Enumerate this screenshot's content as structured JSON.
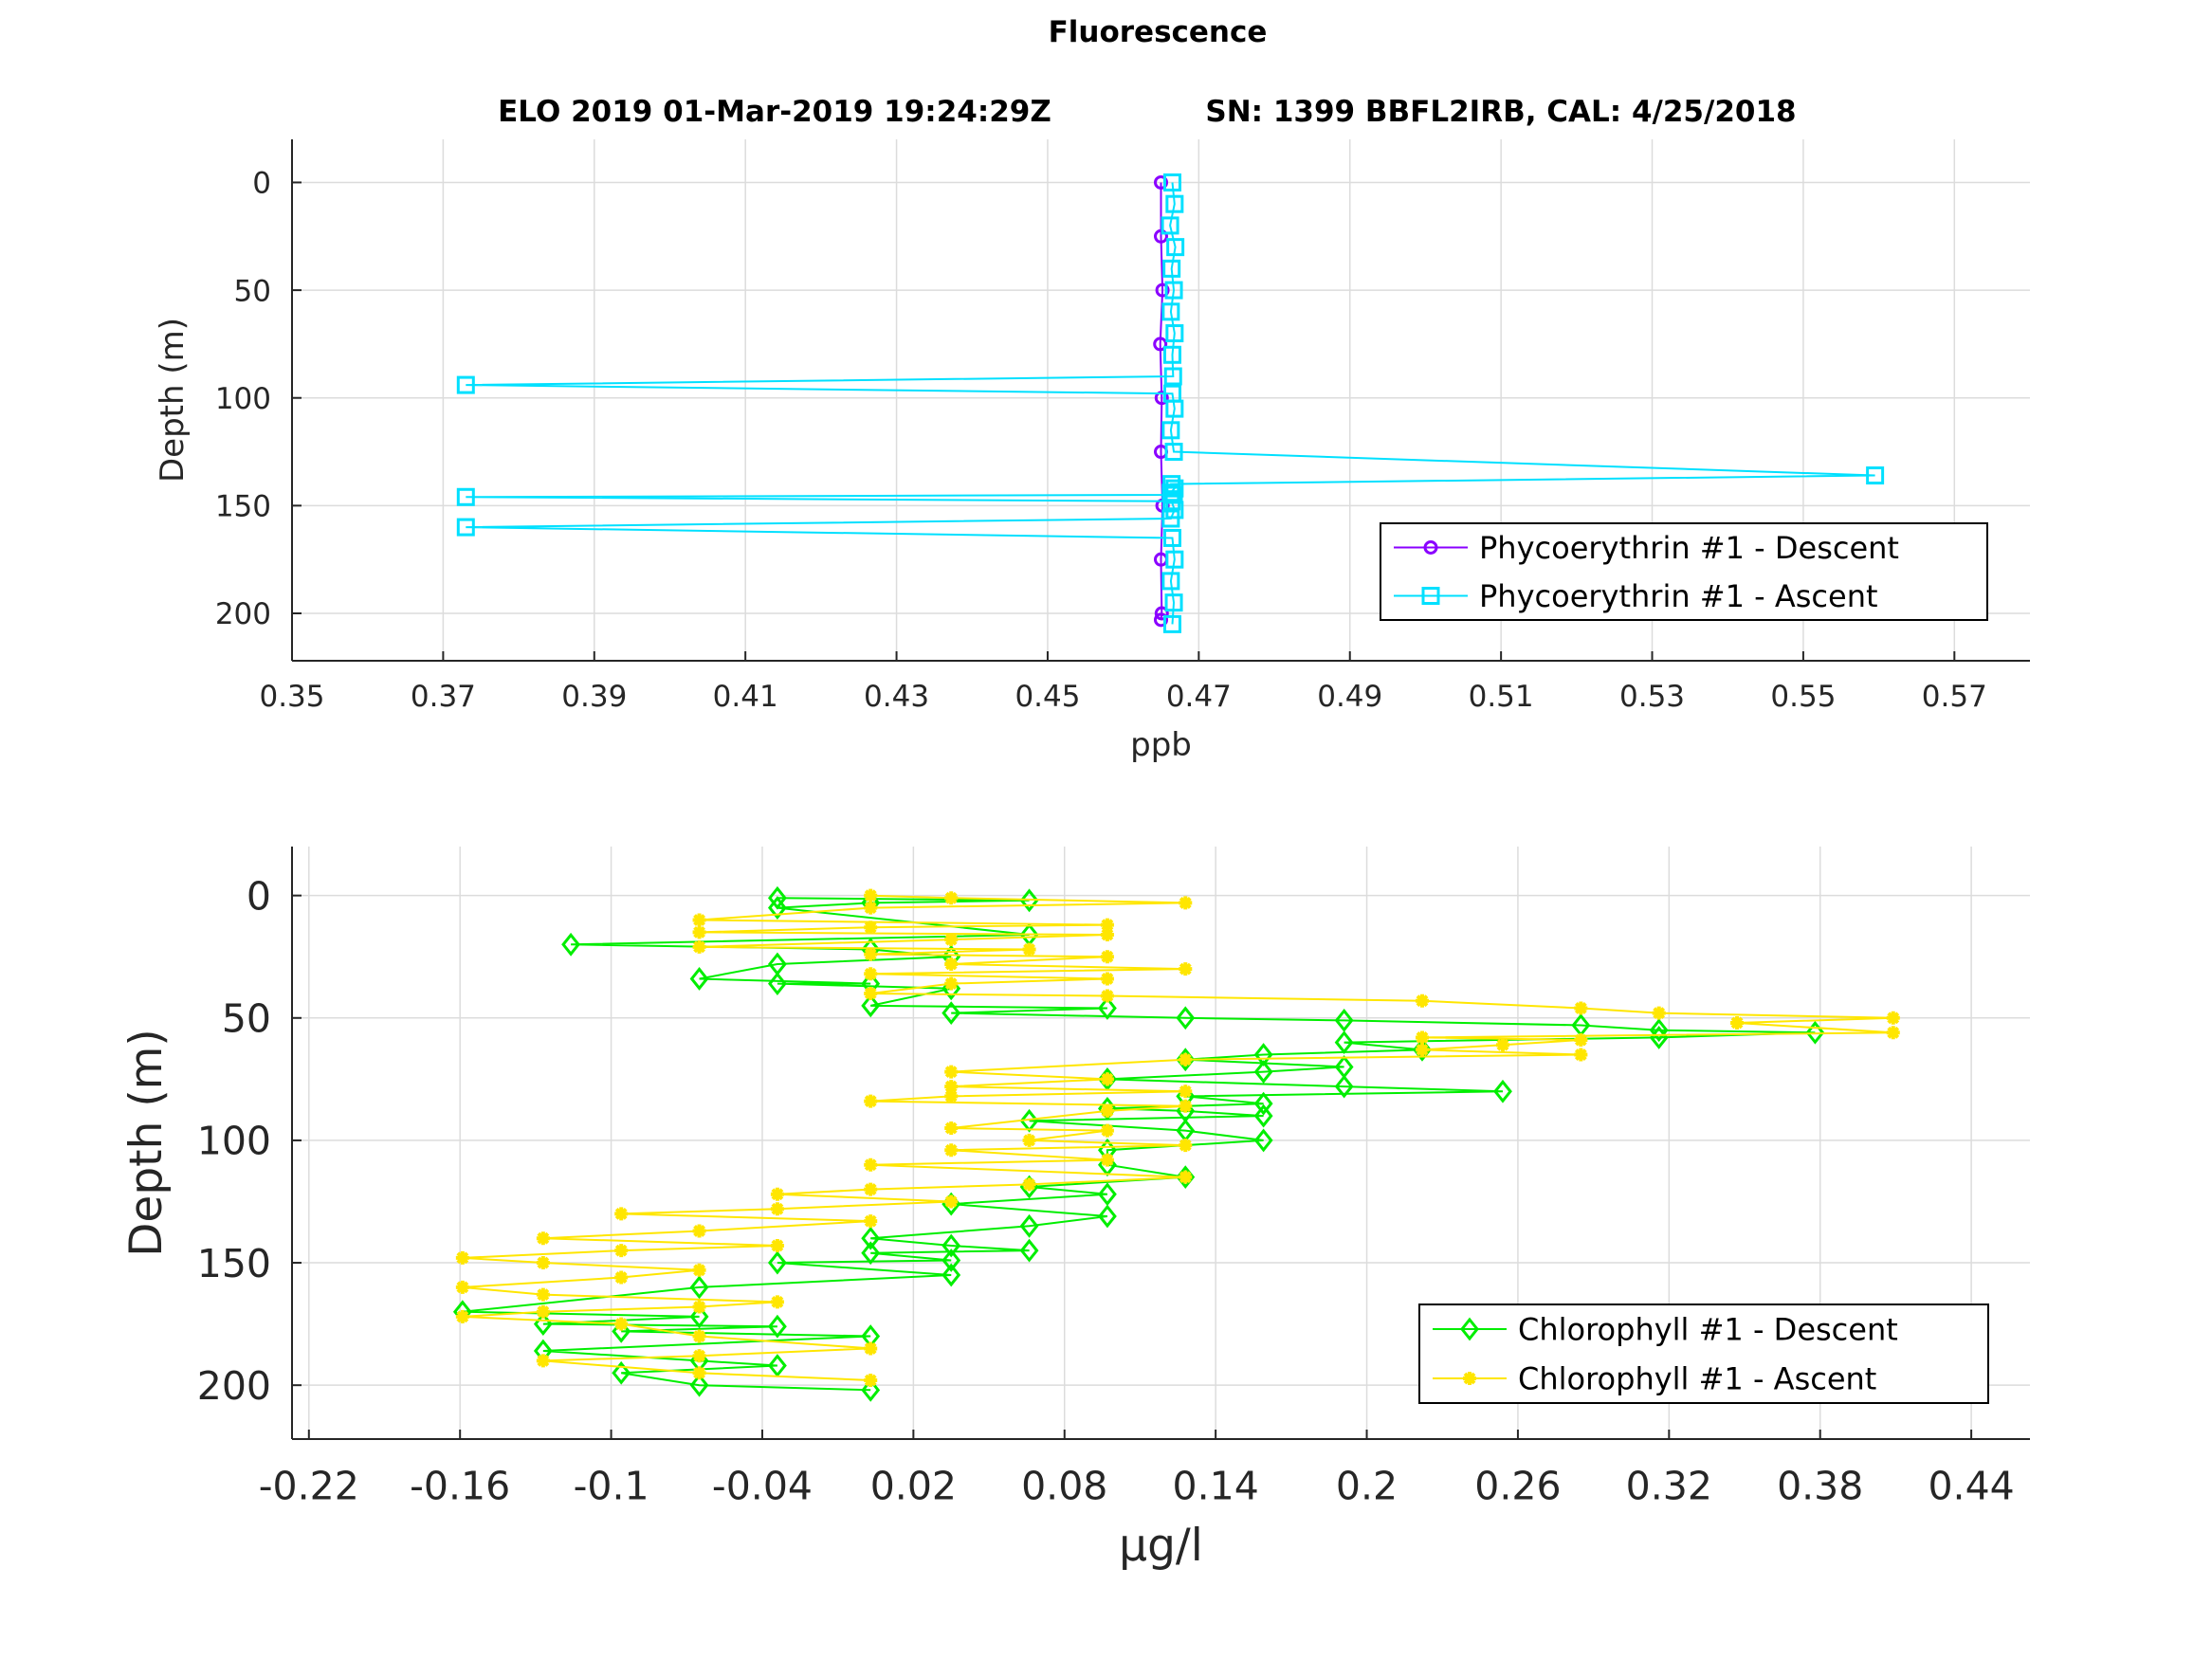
{
  "figure": {
    "title": "Fluorescence",
    "subtitle_left": "ELO 2019 01-Mar-2019 19:24:29Z",
    "subtitle_right": "SN: 1399 BBFL2IRB, CAL: 4/25/2018"
  },
  "colors": {
    "phyco_descent": "#8a00ff",
    "phyco_ascent": "#00e0ff",
    "chl_descent": "#00ee00",
    "chl_ascent": "#ffe600",
    "grid": "#dcdcdc",
    "axis": "#262626"
  },
  "chart_data": [
    {
      "type": "line",
      "xlabel": "ppb",
      "ylabel": "Depth (m)",
      "xlim": [
        0.35,
        0.58
      ],
      "ylim": [
        -20,
        222
      ],
      "y_reversed": true,
      "grid": true,
      "legend_position": "bottom-right",
      "xticks": [
        "0.35",
        "0.37",
        "0.39",
        "0.41",
        "0.43",
        "0.45",
        "0.47",
        "0.49",
        "0.51",
        "0.53",
        "0.55",
        "0.57"
      ],
      "yticks": [
        "0",
        "50",
        "100",
        "150",
        "200"
      ],
      "series": [
        {
          "name": "Phycoerythrin #1 - Descent",
          "marker": "circle",
          "x": [
            0.465,
            0.465,
            0.4652,
            0.4649,
            0.4651,
            0.465,
            0.4652,
            0.465,
            0.4651,
            0.465
          ],
          "y": [
            0,
            25,
            50,
            75,
            100,
            125,
            150,
            175,
            200,
            203
          ]
        },
        {
          "name": "Phycoerythrin #1 - Ascent",
          "marker": "square",
          "x": [
            0.4665,
            0.4668,
            0.4662,
            0.4669,
            0.4664,
            0.4667,
            0.4663,
            0.4668,
            0.4665,
            0.4666,
            0.373,
            0.4665,
            0.4668,
            0.4663,
            0.4667,
            0.5595,
            0.4664,
            0.4668,
            0.4663,
            0.4667,
            0.373,
            0.4664,
            0.4668,
            0.4663,
            0.373,
            0.4665,
            0.4668,
            0.4663,
            0.4667,
            0.4665
          ],
          "y": [
            0,
            10,
            20,
            30,
            40,
            50,
            60,
            70,
            80,
            90,
            94,
            98,
            105,
            115,
            125,
            136,
            140,
            142,
            144,
            145,
            146,
            148,
            152,
            156,
            160,
            165,
            175,
            185,
            195,
            205
          ]
        }
      ]
    },
    {
      "type": "line",
      "xlabel": "µg/l",
      "ylabel": "Depth (m)",
      "xlim": [
        -0.2267,
        0.4633
      ],
      "ylim": [
        -20,
        222
      ],
      "y_reversed": true,
      "grid": true,
      "legend_position": "bottom-right",
      "xticks": [
        "-0.22",
        "-0.16",
        "-0.1",
        "-0.04",
        "0.02",
        "0.08",
        "0.14",
        "0.2",
        "0.26",
        "0.32",
        "0.38",
        "0.44"
      ],
      "yticks": [
        "0",
        "50",
        "100",
        "150",
        "200"
      ],
      "series": [
        {
          "name": "Chlorophyll #1 - Descent",
          "marker": "diamond",
          "x": [
            -0.034,
            0.066,
            0.003,
            -0.034,
            0.066,
            -0.116,
            0.003,
            0.035,
            -0.034,
            -0.065,
            0.003,
            -0.034,
            0.035,
            0.003,
            0.097,
            0.035,
            0.128,
            0.191,
            0.285,
            0.316,
            0.378,
            0.316,
            0.191,
            0.222,
            0.159,
            0.128,
            0.191,
            0.159,
            0.097,
            0.191,
            0.254,
            0.128,
            0.159,
            0.097,
            0.128,
            0.159,
            0.066,
            0.128,
            0.159,
            0.097,
            0.097,
            0.128,
            0.066,
            0.097,
            0.035,
            0.097,
            0.066,
            0.003,
            0.035,
            0.066,
            0.003,
            0.035,
            -0.034,
            0.035,
            -0.065,
            -0.159,
            -0.065,
            -0.127,
            -0.034,
            -0.096,
            0.003,
            -0.127,
            -0.065,
            -0.034,
            -0.096,
            -0.065,
            0.003
          ],
          "y": [
            1,
            2,
            3,
            5,
            16,
            20,
            22,
            25,
            28,
            34,
            36,
            36,
            38,
            45,
            46,
            48,
            50,
            51,
            53,
            55,
            56,
            58,
            60,
            63,
            65,
            67,
            70,
            72,
            75,
            78,
            80,
            82,
            85,
            87,
            88,
            90,
            92,
            96,
            100,
            104,
            110,
            115,
            119,
            122,
            126,
            131,
            135,
            140,
            143,
            145,
            146,
            149,
            150,
            155,
            160,
            170,
            172,
            175,
            176,
            178,
            180,
            186,
            190,
            192,
            195,
            200,
            202
          ]
        },
        {
          "name": "Chlorophyll #1 - Ascent",
          "marker": "asterisk",
          "x": [
            0.003,
            0.035,
            0.128,
            0.003,
            -0.065,
            0.097,
            0.003,
            -0.065,
            0.097,
            0.035,
            -0.065,
            0.066,
            0.003,
            0.097,
            0.035,
            0.128,
            0.003,
            0.097,
            0.035,
            0.003,
            0.097,
            0.222,
            0.285,
            0.316,
            0.409,
            0.347,
            0.409,
            0.222,
            0.285,
            0.254,
            0.222,
            0.285,
            0.128,
            0.035,
            0.097,
            0.035,
            0.128,
            0.035,
            0.003,
            0.128,
            0.097,
            0.035,
            0.097,
            0.066,
            0.128,
            0.035,
            0.097,
            0.003,
            0.128,
            0.066,
            0.003,
            -0.034,
            0.035,
            -0.034,
            -0.096,
            0.003,
            -0.065,
            -0.127,
            -0.034,
            -0.096,
            -0.159,
            -0.127,
            -0.065,
            -0.096,
            -0.159,
            -0.127,
            -0.034,
            -0.065,
            -0.127,
            -0.159,
            -0.096,
            -0.065,
            0.003,
            -0.065,
            -0.127,
            -0.065,
            0.003
          ],
          "y": [
            0,
            1,
            3,
            5,
            10,
            12,
            13,
            15,
            16,
            18,
            21,
            22,
            24,
            25,
            28,
            30,
            32,
            34,
            36,
            40,
            41,
            43,
            46,
            48,
            50,
            52,
            56,
            58,
            59,
            61,
            63,
            65,
            67,
            72,
            75,
            78,
            80,
            82,
            84,
            86,
            88,
            95,
            96,
            100,
            102,
            104,
            108,
            110,
            115,
            118,
            120,
            122,
            125,
            128,
            130,
            133,
            137,
            140,
            143,
            145,
            148,
            150,
            153,
            156,
            160,
            163,
            166,
            168,
            170,
            172,
            175,
            180,
            185,
            188,
            190,
            195,
            198
          ]
        }
      ]
    }
  ]
}
